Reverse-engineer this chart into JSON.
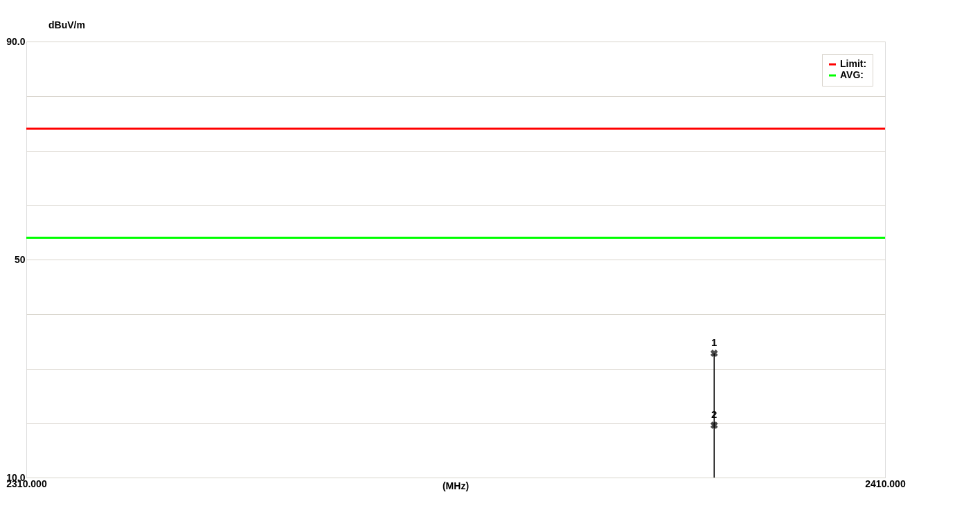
{
  "chart_data": {
    "type": "line",
    "xlabel": "(MHz)",
    "ylabel": "dBuV/m",
    "xlim": [
      2310,
      2410
    ],
    "ylim": [
      10,
      90
    ],
    "xticks": [
      {
        "value": 2310,
        "label": "2310.000"
      },
      {
        "value": 2410,
        "label": "2410.000"
      }
    ],
    "yticks": [
      {
        "value": 10,
        "label": "10.0"
      },
      {
        "value": 20,
        "label": null
      },
      {
        "value": 30,
        "label": null
      },
      {
        "value": 40,
        "label": null
      },
      50,
      {
        "value": 60,
        "label": null
      },
      {
        "value": 70,
        "label": null
      },
      {
        "value": 80,
        "label": null
      },
      {
        "value": 90,
        "label": "90.0"
      }
    ],
    "grid": "y",
    "legend": "top right",
    "series": [
      {
        "name": "Limit:",
        "color": "#ff0000",
        "x": [
          2310,
          2410
        ],
        "values": [
          74,
          74
        ]
      },
      {
        "name": "AVG:",
        "color": "#00ff00",
        "x": [
          2310,
          2410
        ],
        "values": [
          54,
          54
        ]
      },
      {
        "color": "#000000",
        "x": [
          2390.1,
          2390.1
        ],
        "values": [
          10,
          32.8
        ]
      },
      {
        "type": "scatter",
        "color": "#000000",
        "marker": "cross",
        "x": [
          2390.1,
          2390.1
        ],
        "values": [
          32.8,
          19.6
        ]
      }
    ],
    "annotations": [
      {
        "text": "1",
        "x": 2390.1,
        "y": 32.8
      },
      {
        "text": "2",
        "x": 2390.1,
        "y": 19.6
      }
    ]
  }
}
